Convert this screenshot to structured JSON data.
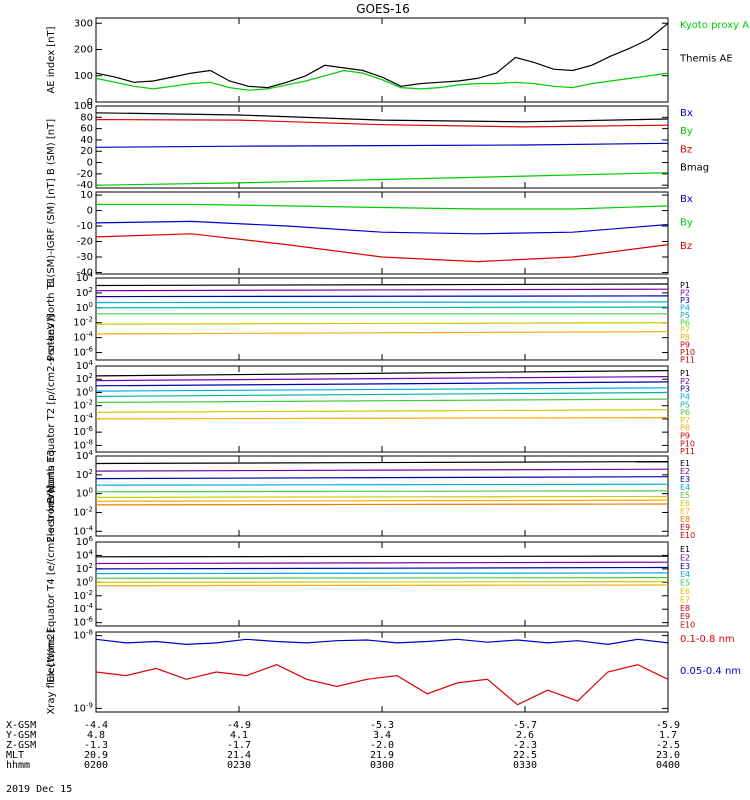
{
  "title": "GOES-16",
  "date": "2019 Dec 15",
  "colors": {
    "black": "#000000",
    "blue": "#0000cc",
    "green": "#00cc00",
    "red": "#dd0000",
    "purple": "#7a00aa",
    "dblue": "#0000aa",
    "cyan": "#00aadd",
    "teal": "#00b4a0",
    "lime": "#44cc44",
    "yellow": "#cccc00",
    "gold": "#ffaa00",
    "orange": "#ee7700",
    "dred": "#bb0000"
  },
  "orbit": {
    "row_labels": [
      "X-GSM",
      "Y-GSM",
      "Z-GSM",
      "MLT",
      "hhmm"
    ],
    "columns": [
      [
        "-4.4",
        "4.8",
        "-1.3",
        "20.9",
        "0200"
      ],
      [
        "-4.9",
        "4.1",
        "-1.7",
        "21.4",
        "0230"
      ],
      [
        "-5.3",
        "3.4",
        "-2.0",
        "21.9",
        "0300"
      ],
      [
        "-5.7",
        "2.6",
        "-2.3",
        "22.5",
        "0330"
      ],
      [
        "-5.9",
        "1.7",
        "-2.5",
        "23.0",
        "0400"
      ]
    ]
  },
  "chart_data": [
    {
      "type": "line",
      "ylabel": "AE index [nT]",
      "yticks": [
        "300",
        "200",
        "100",
        "0"
      ],
      "ylim": [
        0,
        320
      ],
      "legend": [
        "Kyoto proxy AE",
        "Themis AE"
      ],
      "x": [
        0,
        4,
        8,
        12,
        16,
        20,
        24,
        28,
        32,
        36,
        40,
        44,
        48,
        52,
        56,
        60,
        64,
        68,
        72,
        76,
        80,
        84,
        88,
        92,
        96,
        100,
        104,
        108,
        112,
        116,
        120
      ],
      "series": [
        {
          "name": "Kyoto proxy AE",
          "color": "green",
          "values": [
            90,
            75,
            60,
            50,
            60,
            70,
            75,
            55,
            45,
            50,
            65,
            80,
            100,
            120,
            110,
            85,
            55,
            50,
            55,
            65,
            70,
            70,
            75,
            70,
            60,
            55,
            70,
            80,
            90,
            100,
            110
          ]
        },
        {
          "name": "Themis AE",
          "color": "black",
          "values": [
            110,
            95,
            75,
            80,
            95,
            110,
            120,
            80,
            60,
            55,
            75,
            100,
            140,
            130,
            120,
            95,
            60,
            70,
            75,
            80,
            90,
            110,
            170,
            150,
            125,
            120,
            140,
            175,
            205,
            240,
            300
          ]
        }
      ]
    },
    {
      "type": "line",
      "ylabel": "B (SM) [nT]",
      "yticks": [
        "100",
        "80",
        "60",
        "40",
        "20",
        "0",
        "-20",
        "-40"
      ],
      "ylim": [
        -45,
        100
      ],
      "legend": [
        "Bx",
        "By",
        "Bz",
        "Bmag"
      ],
      "x": [
        0,
        30,
        60,
        90,
        120
      ],
      "series": [
        {
          "name": "Bx",
          "color": "blue",
          "values": [
            27,
            29,
            30,
            31,
            34
          ]
        },
        {
          "name": "By",
          "color": "green",
          "values": [
            -40,
            -36,
            -30,
            -24,
            -18
          ]
        },
        {
          "name": "Bz",
          "color": "red",
          "values": [
            76,
            75,
            67,
            63,
            66
          ]
        },
        {
          "name": "Bmag",
          "color": "black",
          "values": [
            88,
            84,
            75,
            72,
            77
          ]
        }
      ]
    },
    {
      "type": "line",
      "ylabel": "B (SM)-IGRF (SM) [nT]",
      "yticks": [
        "10",
        "0",
        "-10",
        "-20",
        "-30",
        "-40"
      ],
      "ylim": [
        -41,
        12
      ],
      "legend": [
        "Bx",
        "By",
        "Bz"
      ],
      "x": [
        0,
        20,
        40,
        60,
        80,
        100,
        120
      ],
      "series": [
        {
          "name": "Bx",
          "color": "blue",
          "values": [
            -8,
            -7,
            -10,
            -14,
            -15,
            -14,
            -9
          ]
        },
        {
          "name": "By",
          "color": "green",
          "values": [
            4,
            4,
            3,
            2,
            1,
            1,
            3
          ]
        },
        {
          "name": "Bz",
          "color": "red",
          "values": [
            -17,
            -15,
            -22,
            -30,
            -33,
            -30,
            -22
          ]
        }
      ]
    },
    {
      "type": "line",
      "ylabel": "Protons North T1",
      "log": true,
      "yticks": [
        "10^4",
        "10^2",
        "10^0",
        "10^-2",
        "10^-4",
        "10^-6"
      ],
      "ylim": [
        -7,
        4
      ],
      "legend": [
        "P1",
        "P2",
        "P3",
        "P4",
        "P5",
        "P6",
        "P7",
        "P8",
        "P9",
        "P10",
        "P11"
      ],
      "series": [
        {
          "name": "P1",
          "color": "black",
          "values": [
            3.0,
            3.2
          ]
        },
        {
          "name": "P2",
          "color": "purple",
          "values": [
            2.3,
            2.5
          ]
        },
        {
          "name": "P3",
          "color": "dblue",
          "values": [
            1.5,
            1.6
          ]
        },
        {
          "name": "P4",
          "color": "cyan",
          "values": [
            0.7,
            0.8
          ]
        },
        {
          "name": "P5",
          "color": "teal",
          "values": [
            0.0,
            0.1
          ]
        },
        {
          "name": "P6",
          "color": "lime",
          "values": [
            -0.8,
            -0.8
          ]
        },
        {
          "name": "P7",
          "color": "yellow",
          "values": [
            -2.2,
            -2.0
          ]
        },
        {
          "name": "P8",
          "color": "gold",
          "values": [
            -3.5,
            -3.2
          ]
        }
      ]
    },
    {
      "type": "line",
      "ylabel": "Protons Equator T2 [p/(cm2-s-sr-keV)]",
      "log": true,
      "yticks": [
        "10^4",
        "10^2",
        "10^0",
        "10^-2",
        "10^-4",
        "10^-6",
        "10^-8"
      ],
      "ylim": [
        -9,
        4
      ],
      "legend": [
        "P1",
        "P2",
        "P3",
        "P4",
        "P5",
        "P6",
        "P7",
        "P8",
        "P9",
        "P10",
        "P11"
      ],
      "series": [
        {
          "name": "P1",
          "color": "black",
          "values": [
            2.5,
            3.3
          ]
        },
        {
          "name": "P2",
          "color": "purple",
          "values": [
            1.8,
            2.4
          ]
        },
        {
          "name": "P3",
          "color": "dblue",
          "values": [
            1.0,
            1.6
          ]
        },
        {
          "name": "P4",
          "color": "cyan",
          "values": [
            0.2,
            0.7
          ]
        },
        {
          "name": "P5",
          "color": "teal",
          "values": [
            -0.6,
            0.0
          ]
        },
        {
          "name": "P6",
          "color": "lime",
          "values": [
            -1.5,
            -1.0
          ]
        },
        {
          "name": "P7",
          "color": "yellow",
          "values": [
            -3.0,
            -2.6
          ]
        },
        {
          "name": "P8",
          "color": "gold",
          "values": [
            -4.0,
            -3.8
          ]
        }
      ]
    },
    {
      "type": "line",
      "ylabel": "Electrons North T3",
      "log": true,
      "yticks": [
        "10^4",
        "10^2",
        "10^0",
        "10^-2",
        "10^-4"
      ],
      "ylim": [
        -4.5,
        4
      ],
      "legend": [
        "E1",
        "E2",
        "E3",
        "E4",
        "E5",
        "E6",
        "E7",
        "E8",
        "E9",
        "E10"
      ],
      "series": [
        {
          "name": "E1",
          "color": "black",
          "values": [
            3.2,
            3.4
          ]
        },
        {
          "name": "E2",
          "color": "purple",
          "values": [
            2.4,
            2.6
          ]
        },
        {
          "name": "E3",
          "color": "dblue",
          "values": [
            1.6,
            1.8
          ]
        },
        {
          "name": "E4",
          "color": "cyan",
          "values": [
            0.9,
            1.0
          ]
        },
        {
          "name": "E5",
          "color": "lime",
          "values": [
            0.2,
            0.3
          ]
        },
        {
          "name": "E6",
          "color": "yellow",
          "values": [
            -0.4,
            -0.3
          ]
        },
        {
          "name": "E7",
          "color": "gold",
          "values": [
            -0.8,
            -0.7
          ]
        },
        {
          "name": "E8",
          "color": "orange",
          "values": [
            -1.2,
            -1.1
          ]
        }
      ]
    },
    {
      "type": "line",
      "ylabel": "Electrons Equator T4 [e/(cm2-s-sr-keV)]",
      "log": true,
      "yticks": [
        "10^6",
        "10^4",
        "10^2",
        "10^0",
        "10^-2",
        "10^-4",
        "10^-6"
      ],
      "ylim": [
        -6.5,
        6
      ],
      "legend": [
        "E1",
        "E2",
        "E3",
        "E4",
        "E5",
        "E6",
        "E7",
        "E8",
        "E9",
        "E10"
      ],
      "series": [
        {
          "name": "E1",
          "color": "black",
          "values": [
            3.8,
            3.9
          ]
        },
        {
          "name": "E2",
          "color": "purple",
          "values": [
            2.8,
            3.0
          ]
        },
        {
          "name": "E3",
          "color": "dblue",
          "values": [
            2.0,
            2.2
          ]
        },
        {
          "name": "E4",
          "color": "cyan",
          "values": [
            1.3,
            1.4
          ]
        },
        {
          "name": "E5",
          "color": "lime",
          "values": [
            0.6,
            0.7
          ]
        },
        {
          "name": "E6",
          "color": "yellow",
          "values": [
            0.0,
            0.1
          ]
        },
        {
          "name": "E7",
          "color": "gold",
          "values": [
            -0.5,
            -0.4
          ]
        }
      ]
    },
    {
      "type": "line",
      "ylabel": "Xray flux [W/m2]",
      "log": true,
      "yticks": [
        "10^-8",
        "10^-9"
      ],
      "ylim": [
        -9.05,
        -7.95
      ],
      "legend": [
        "0.1-0.8 nm",
        "0.05-0.4 nm"
      ],
      "series": [
        {
          "name": "0.1-0.8 nm",
          "color": "red",
          "values": [
            -8.5,
            -8.55,
            -8.45,
            -8.6,
            -8.5,
            -8.55,
            -8.4,
            -8.6,
            -8.7,
            -8.6,
            -8.55,
            -8.8,
            -8.65,
            -8.6,
            -8.95,
            -8.75,
            -8.9,
            -8.5,
            -8.4,
            -8.6
          ]
        },
        {
          "name": "0.05-0.4 nm",
          "color": "blue",
          "values": [
            -8.05,
            -8.1,
            -8.08,
            -8.12,
            -8.1,
            -8.05,
            -8.08,
            -8.1,
            -8.07,
            -8.06,
            -8.1,
            -8.08,
            -8.05,
            -8.09,
            -8.06,
            -8.1,
            -8.07,
            -8.12,
            -8.05,
            -8.1
          ]
        }
      ]
    }
  ]
}
